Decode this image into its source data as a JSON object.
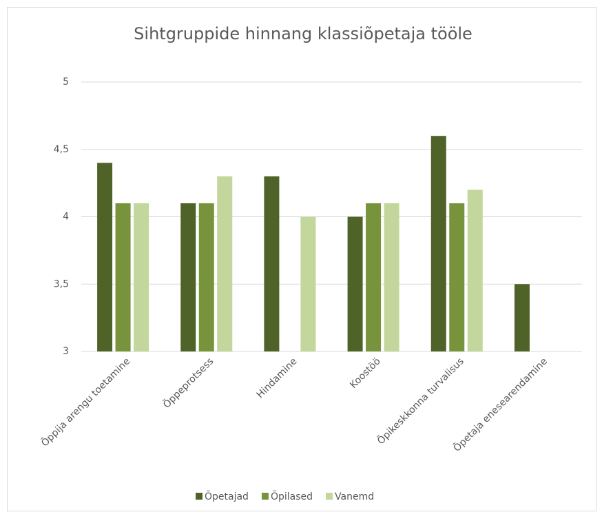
{
  "chart_data": {
    "type": "bar",
    "title": "Sihtgruppide hinnang klassiõpetaja tööle",
    "categories": [
      "Õppija arengu toetamine",
      "Õppeprotsess",
      "Hindamine",
      "Koostöö",
      "Õpikeskkonna turvalisus",
      "Õpetaja enesearendamine"
    ],
    "series": [
      {
        "name": "Õpetajad",
        "color": "#4f6228",
        "values": [
          4.4,
          4.1,
          4.3,
          4.0,
          4.6,
          3.5
        ]
      },
      {
        "name": "Õpilased",
        "color": "#77933c",
        "values": [
          4.1,
          4.1,
          null,
          4.1,
          4.1,
          null
        ]
      },
      {
        "name": "Vanemd",
        "color": "#c3d69b",
        "values": [
          4.1,
          4.3,
          4.0,
          4.1,
          4.2,
          null
        ]
      }
    ],
    "ylim": [
      3,
      5
    ],
    "yticks": [
      3,
      {
        "value": 3.5,
        "label": "3,5"
      },
      4,
      {
        "value": 4.5,
        "label": "4,5"
      },
      5
    ],
    "grid": true,
    "legend": "bottom"
  }
}
